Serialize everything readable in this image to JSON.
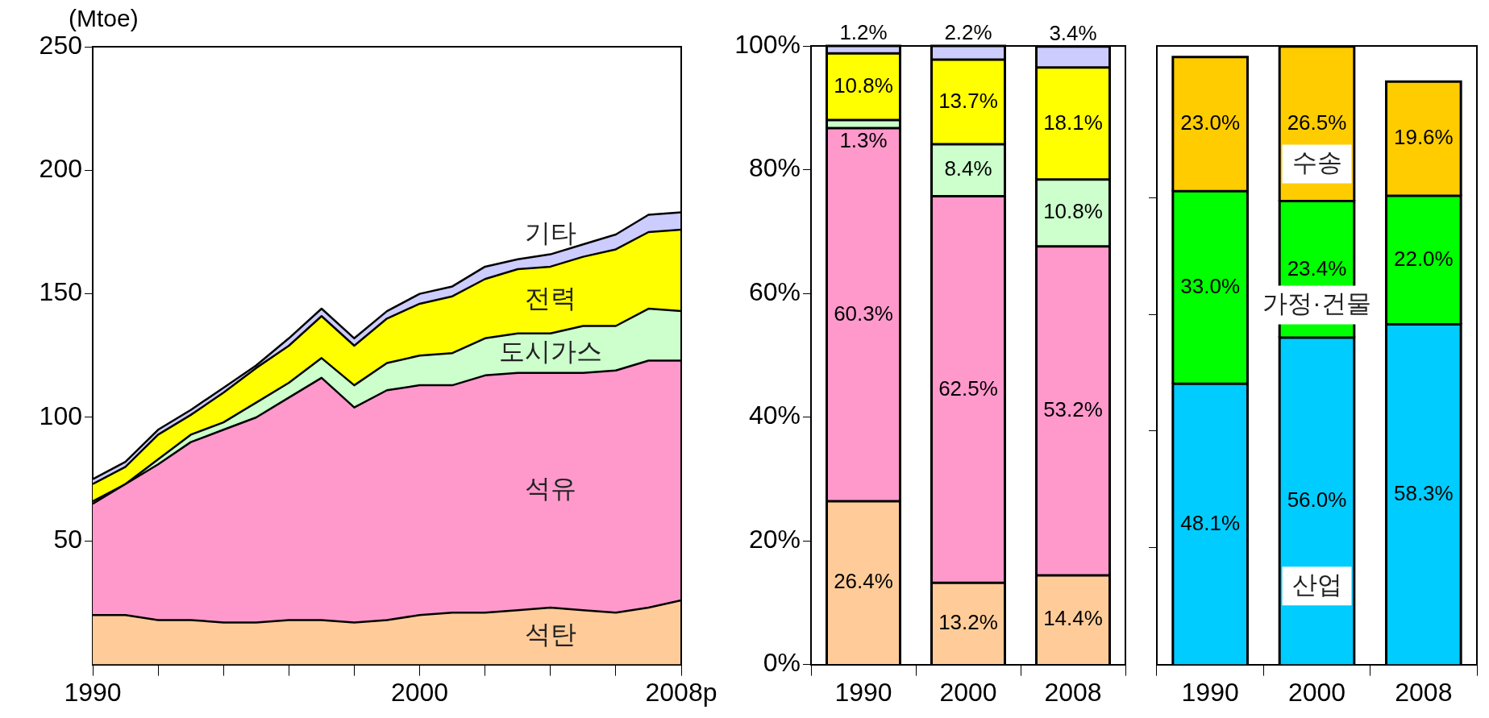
{
  "chart_data": [
    {
      "type": "area",
      "stacked": true,
      "ylabel": "(Mtoe)",
      "x": [
        1990,
        1991,
        1992,
        1993,
        1994,
        1995,
        1996,
        1997,
        1998,
        1999,
        2000,
        2001,
        2002,
        2003,
        2004,
        2005,
        2006,
        2007,
        2008
      ],
      "xlim": [
        1990,
        2008
      ],
      "xticks": [
        1990,
        {
          "value": 1992,
          "label": null
        },
        {
          "value": 1994,
          "label": null
        },
        {
          "value": 1996,
          "label": null
        },
        {
          "value": 1998,
          "label": null
        },
        2000,
        {
          "value": 2002,
          "label": null
        },
        {
          "value": 2004,
          "label": null
        },
        {
          "value": 2006,
          "label": null
        },
        {
          "value": 2008,
          "label": "2008p"
        }
      ],
      "ylim": [
        0,
        250
      ],
      "yticks": [
        50,
        100,
        150,
        200,
        250
      ],
      "series": [
        {
          "name": "석탄",
          "color": "#ffcc99",
          "values": [
            20,
            20,
            18,
            18,
            17,
            17,
            18,
            18,
            17,
            18,
            20,
            21,
            21,
            22,
            23,
            22,
            21,
            23,
            26
          ]
        },
        {
          "name": "석유",
          "color": "#ff99cc",
          "values": [
            45,
            53,
            63,
            72,
            78,
            83,
            90,
            98,
            87,
            93,
            93,
            92,
            96,
            96,
            95,
            96,
            98,
            100,
            97
          ]
        },
        {
          "name": "도시가스",
          "color": "#ccffcc",
          "values": [
            1,
            0,
            2,
            3,
            3,
            6,
            6,
            8,
            9,
            11,
            12,
            13,
            15,
            16,
            16,
            19,
            18,
            21,
            20
          ]
        },
        {
          "name": "전력",
          "color": "#ffff00",
          "values": [
            7,
            7,
            10,
            8,
            12,
            14,
            15,
            17,
            16,
            18,
            21,
            23,
            24,
            26,
            27,
            28,
            31,
            31,
            33
          ]
        },
        {
          "name": "기타",
          "color": "#ccccff",
          "values": [
            2,
            2,
            2,
            2,
            2,
            1,
            3,
            3,
            3,
            3,
            4,
            4,
            5,
            4,
            5,
            5,
            6,
            7,
            7
          ]
        }
      ]
    },
    {
      "type": "bar",
      "stacked": true,
      "categories": [
        "1990",
        "2000",
        "2008"
      ],
      "ylim": [
        0,
        100
      ],
      "yticks": [
        {
          "value": 0,
          "label": "0%"
        },
        {
          "value": 20,
          "label": "20%"
        },
        {
          "value": 40,
          "label": "40%"
        },
        {
          "value": 60,
          "label": "60%"
        },
        {
          "value": 80,
          "label": "80%"
        },
        {
          "value": 100,
          "label": "100%"
        }
      ],
      "series": [
        {
          "color": "#ffcc99",
          "values": [
            26.4,
            13.2,
            14.4
          ],
          "value_labels": [
            "26.4%",
            "13.2%",
            "14.4%"
          ]
        },
        {
          "color": "#ff99cc",
          "values": [
            60.3,
            62.5,
            53.2
          ],
          "value_labels": [
            "60.3%",
            "62.5%",
            "53.2%"
          ]
        },
        {
          "color": "#ccffcc",
          "values": [
            1.3,
            8.4,
            10.8
          ],
          "value_labels": [
            "1.3%",
            "8.4%",
            "10.8%"
          ]
        },
        {
          "color": "#ffff00",
          "values": [
            10.8,
            13.7,
            18.1
          ],
          "value_labels": [
            "10.8%",
            "13.7%",
            "18.1%"
          ]
        },
        {
          "color": "#ccccff",
          "values": [
            1.2,
            2.2,
            3.4
          ],
          "value_labels": [
            "1.2%",
            "2.2%",
            "3.4%"
          ]
        }
      ]
    },
    {
      "type": "bar",
      "stacked": true,
      "tick_labels": "x",
      "categories": [
        "1990",
        "2000",
        "2008"
      ],
      "ylim": [
        0,
        106
      ],
      "yticks": [
        {
          "value": 20,
          "label": null
        },
        {
          "value": 40,
          "label": null
        },
        {
          "value": 60,
          "label": null
        },
        {
          "value": 80,
          "label": null
        }
      ],
      "series": [
        {
          "name": "산업",
          "color": "#00ccff",
          "values": [
            48.1,
            56.0,
            58.3
          ],
          "value_labels": [
            "48.1%",
            "56.0%",
            "58.3%"
          ]
        },
        {
          "name": "가정·건물",
          "color": "#00ff00",
          "values": [
            33.0,
            23.4,
            22.0
          ],
          "value_labels": [
            "33.0%",
            "23.4%",
            "22.0%"
          ]
        },
        {
          "name": "수송",
          "color": "#ffcc00",
          "values": [
            23.0,
            26.5,
            19.6
          ],
          "value_labels": [
            "23.0%",
            "26.5%",
            "19.6%"
          ]
        }
      ]
    }
  ]
}
